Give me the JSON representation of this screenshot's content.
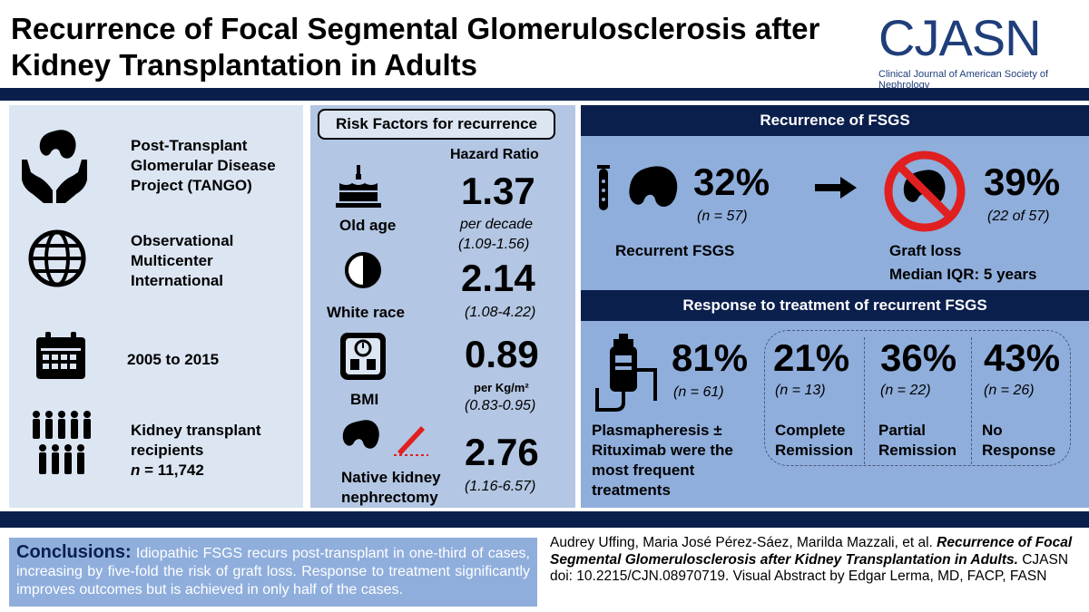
{
  "title": "Recurrence of Focal Segmental Glomerulosclerosis after Kidney Transplantation in Adults",
  "logo": {
    "name": "CJASN",
    "subtitle": "Clinical Journal of American Society of Nephrology"
  },
  "colors": {
    "navy": "#0b1f4d",
    "light_panel": "#dce5f2",
    "mid_panel": "#b3c6e3",
    "right_panel": "#8faedc",
    "logo_blue": "#1f3e7a",
    "red": "#e02020"
  },
  "study": {
    "items": [
      {
        "icon": "kidney-hands-icon",
        "text_lines": [
          "Post-Transplant",
          "Glomerular Disease",
          "Project (TANGO)"
        ]
      },
      {
        "icon": "globe-icon",
        "text_lines": [
          "Observational",
          "Multicenter",
          "International"
        ]
      },
      {
        "icon": "calendar-icon",
        "text_lines": [
          "2005 to 2015"
        ]
      },
      {
        "icon": "people-icon",
        "text_lines": [
          "Kidney transplant",
          "recipients"
        ],
        "n_label": "n",
        "n_value": "= 11,742"
      }
    ]
  },
  "risk": {
    "header": "Risk Factors for recurrence",
    "hr_label": "Hazard Ratio",
    "factors": [
      {
        "icon": "cake-icon",
        "label": "Old age",
        "value": "1.37",
        "note": "per decade",
        "ci": "(1.09-1.56)"
      },
      {
        "icon": "half-circle-icon",
        "label": "White race",
        "value": "2.14",
        "note": "",
        "ci": "(1.08-4.22)"
      },
      {
        "icon": "scale-icon",
        "label": "BMI",
        "value": "0.89",
        "note": "per Kg/m²",
        "ci": "(0.83-0.95)"
      },
      {
        "icon": "kidney-scalpel-icon",
        "label_lines": [
          "Native kidney",
          "nephrectomy"
        ],
        "value": "2.76",
        "note": "",
        "ci": "(1.16-6.57)"
      }
    ]
  },
  "recurrence": {
    "header": "Recurrence of FSGS",
    "recurrent": {
      "pct": "32%",
      "n": "(n = 57)",
      "label": "Recurrent FSGS"
    },
    "graft": {
      "pct": "39%",
      "n": "(22 of 57)",
      "label": "Graft loss",
      "sub": "Median IQR: 5 years"
    }
  },
  "response": {
    "header": "Response to treatment of recurrent FSGS",
    "treated": {
      "pct": "81%",
      "n": "(n = 61)",
      "label_lines": [
        "Plasmapheresis ±",
        "Rituximab were the",
        "most frequent",
        "treatments"
      ]
    },
    "outcomes": [
      {
        "pct": "21%",
        "n": "(n = 13)",
        "label_lines": [
          "Complete",
          "Remission"
        ]
      },
      {
        "pct": "36%",
        "n": "(n = 22)",
        "label_lines": [
          "Partial",
          "Remission"
        ]
      },
      {
        "pct": "43%",
        "n": "(n = 26)",
        "label_lines": [
          "No",
          "Response"
        ]
      }
    ]
  },
  "conclusions": {
    "label": "Conclusions:",
    "text": "Idiopathic FSGS recurs post-transplant in one-third of cases, increasing by five-fold the risk of graft loss. Response to treatment significantly improves outcomes but is achieved in only half of the cases."
  },
  "citation": {
    "authors": "Audrey Uffing, Maria José Pérez-Sáez, Marilda Mazzali, et al.",
    "title": "Recurrence of Focal Segmental Glomerulosclerosis after Kidney Transplantation in Adults.",
    "rest": "CJASN doi: 10.2215/CJN.08970719. Visual Abstract by Edgar Lerma, MD, FACP, FASN"
  }
}
